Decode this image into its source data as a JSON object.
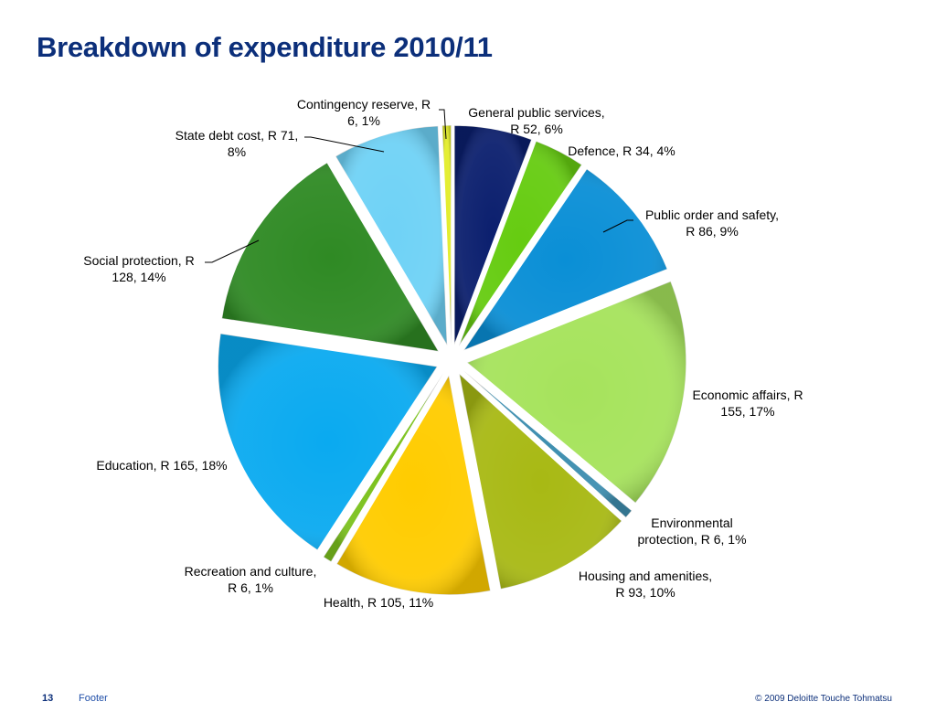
{
  "slide": {
    "title": "Breakdown of expenditure 2010/11"
  },
  "footer": {
    "page_number": "13",
    "text": "Footer",
    "copyright": "© 2009 Deloitte Touche Tohmatsu"
  },
  "chart_data": {
    "type": "pie",
    "title": "Breakdown of expenditure 2010/11",
    "unit": "R",
    "legend": "none",
    "slices": [
      {
        "name": "General public services",
        "value": 52,
        "percent": 6,
        "color": "#0b1f6e",
        "label_lines": [
          "General public services,",
          "R 52, 6%"
        ]
      },
      {
        "name": "Defence",
        "value": 34,
        "percent": 4,
        "color": "#66cc11",
        "label_lines": [
          "Defence, R 34, 4%"
        ]
      },
      {
        "name": "Public order and safety",
        "value": 86,
        "percent": 9,
        "color": "#0a8fd6",
        "label_lines": [
          "Public order and safety,",
          "R 86, 9%"
        ]
      },
      {
        "name": "Economic affairs",
        "value": 155,
        "percent": 17,
        "color": "#a6e35c",
        "label_lines": [
          "Economic affairs, R",
          "155, 17%"
        ]
      },
      {
        "name": "Environmental protection",
        "value": 6,
        "percent": 1,
        "color": "#3f8fb0",
        "label_lines": [
          "Environmental",
          "protection, R 6, 1%"
        ]
      },
      {
        "name": "Housing and amenities",
        "value": 93,
        "percent": 10,
        "color": "#a8b914",
        "label_lines": [
          "Housing and amenities,",
          "R 93, 10%"
        ]
      },
      {
        "name": "Health",
        "value": 105,
        "percent": 11,
        "color": "#ffcc00",
        "label_lines": [
          "Health, R 105, 11%"
        ]
      },
      {
        "name": "Recreation and culture",
        "value": 6,
        "percent": 1,
        "color": "#7cc21e",
        "label_lines": [
          "Recreation and culture,",
          "R 6, 1%"
        ]
      },
      {
        "name": "Education",
        "value": 165,
        "percent": 18,
        "color": "#0aaaf0",
        "label_lines": [
          "Education, R 165, 18%"
        ]
      },
      {
        "name": "Social protection",
        "value": 128,
        "percent": 14,
        "color": "#2f8a24",
        "label_lines": [
          "Social protection, R",
          "128, 14%"
        ]
      },
      {
        "name": "State debt cost",
        "value": 71,
        "percent": 8,
        "color": "#6fd2f6",
        "label_lines": [
          "State debt cost, R 71,",
          "8%"
        ]
      },
      {
        "name": "Contingency reserve",
        "value": 6,
        "percent": 1,
        "color": "#e3ed2c",
        "label_lines": [
          "Contingency reserve, R",
          "6, 1%"
        ]
      }
    ]
  }
}
